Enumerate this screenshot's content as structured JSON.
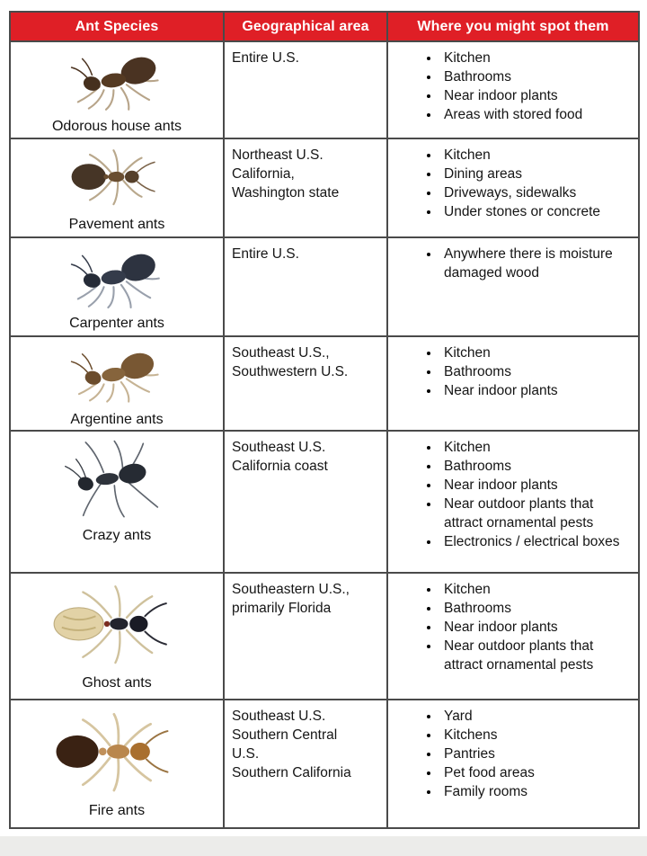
{
  "colors": {
    "header_bg": "#df1f26",
    "header_text": "#ffffff",
    "border": "#4a4a4a"
  },
  "table": {
    "headers": [
      "Ant Species",
      "Geographical area",
      "Where you might spot them"
    ],
    "rows": [
      {
        "species": "Odorous house ants",
        "icon": "odorous-house-ant-icon",
        "geo_area": "Entire U.S.",
        "spots": [
          "Kitchen",
          "Bathrooms",
          "Near indoor plants",
          "Areas with stored food"
        ]
      },
      {
        "species": "Pavement ants",
        "icon": "pavement-ant-icon",
        "geo_area": "Northeast U.S.\nCalifornia,\nWashington state",
        "spots": [
          "Kitchen",
          "Dining areas",
          "Driveways, sidewalks",
          "Under stones or concrete"
        ]
      },
      {
        "species": "Carpenter ants",
        "icon": "carpenter-ant-icon",
        "geo_area": "Entire U.S.",
        "spots": [
          "Anywhere there is moisture damaged wood"
        ]
      },
      {
        "species": "Argentine ants",
        "icon": "argentine-ant-icon",
        "geo_area": "Southeast U.S.,\nSouthwestern U.S.",
        "spots": [
          "Kitchen",
          "Bathrooms",
          "Near indoor plants"
        ]
      },
      {
        "species": "Crazy ants",
        "icon": "crazy-ant-icon",
        "geo_area": "Southeast U.S.\nCalifornia coast",
        "spots": [
          "Kitchen",
          "Bathrooms",
          "Near indoor plants",
          "Near outdoor plants that attract ornamental pests",
          "Electronics / electrical boxes"
        ]
      },
      {
        "species": "Ghost ants",
        "icon": "ghost-ant-icon",
        "geo_area": "Southeastern U.S.,\nprimarily Florida",
        "spots": [
          "Kitchen",
          "Bathrooms",
          "Near indoor plants",
          "Near outdoor plants that attract ornamental pests"
        ]
      },
      {
        "species": "Fire ants",
        "icon": "fire-ant-icon",
        "geo_area": "Southeast U.S.\nSouthern Central\nU.S.\nSouthern California",
        "spots": [
          "Yard",
          "Kitchens",
          "Pantries",
          "Pet food areas",
          "Family rooms"
        ]
      }
    ]
  }
}
